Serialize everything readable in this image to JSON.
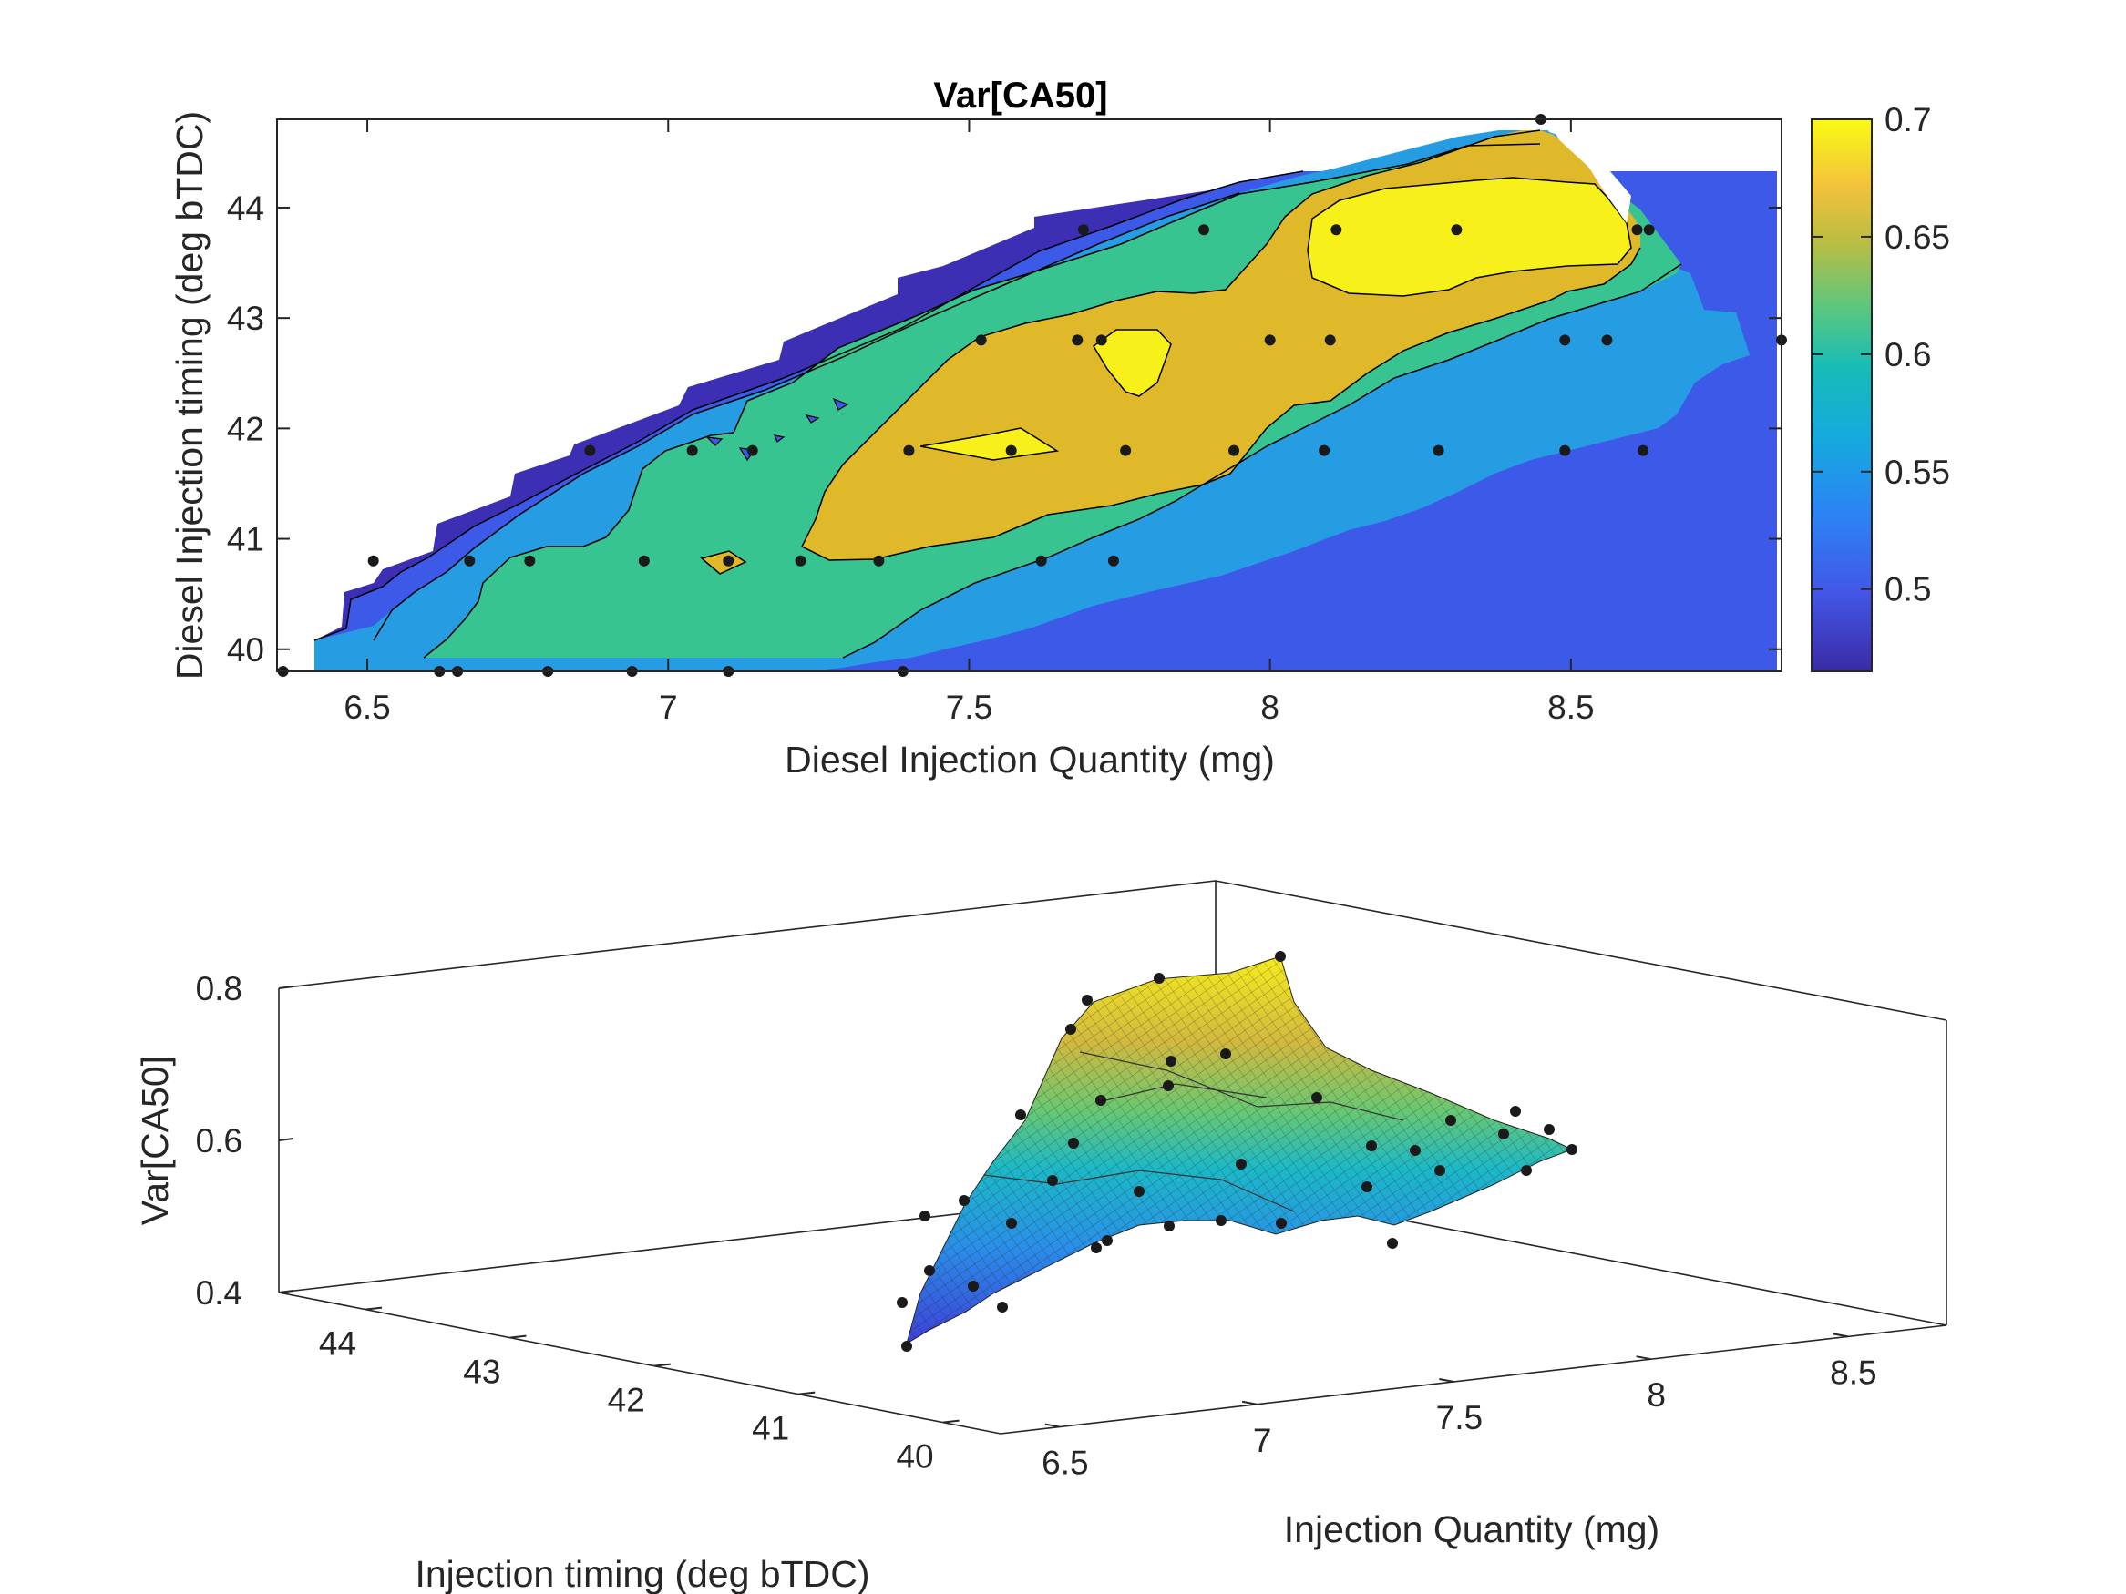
{
  "chart_data": [
    {
      "type": "contour",
      "title": "Var[CA50]",
      "xlabel": "Diesel Injection Quantity (mg)",
      "ylabel": "Diesel Injection timing (deg bTDC)",
      "xlim": [
        6.35,
        8.85
      ],
      "ylim": [
        39.8,
        44.8
      ],
      "xticks": [
        6.5,
        7,
        7.5,
        8,
        8.5
      ],
      "xtick_labels": [
        "6.5",
        "7",
        "7.5",
        "8",
        "8.5"
      ],
      "yticks": [
        40,
        41,
        42,
        43,
        44
      ],
      "ytick_labels": [
        "40",
        "41",
        "42",
        "43",
        "44"
      ],
      "colorbar": {
        "range": [
          0.465,
          0.7
        ],
        "ticks": [
          0.5,
          0.55,
          0.6,
          0.65,
          0.7
        ],
        "tick_labels": [
          "0.5",
          "0.55",
          "0.6",
          "0.65",
          "0.7"
        ],
        "colormap": "parula"
      },
      "contour_levels": [
        0.5,
        0.55,
        0.6,
        0.65,
        0.7
      ],
      "level_colors": [
        "#3c2fb3",
        "#3d59e8",
        "#269de3",
        "#37c491",
        "#e0b92b",
        "#f7f01a"
      ],
      "grid": false,
      "sample_points": [
        [
          6.36,
          39.8
        ],
        [
          6.51,
          40.8
        ],
        [
          6.62,
          39.8
        ],
        [
          6.65,
          39.8
        ],
        [
          6.67,
          40.8
        ],
        [
          6.77,
          40.8
        ],
        [
          6.8,
          39.8
        ],
        [
          6.87,
          41.8
        ],
        [
          6.94,
          39.8
        ],
        [
          6.96,
          40.8
        ],
        [
          7.04,
          41.8
        ],
        [
          7.1,
          40.8
        ],
        [
          7.1,
          39.8
        ],
        [
          7.14,
          41.8
        ],
        [
          7.22,
          40.8
        ],
        [
          7.35,
          40.8
        ],
        [
          7.39,
          39.8
        ],
        [
          7.4,
          41.8
        ],
        [
          7.52,
          42.8
        ],
        [
          7.57,
          41.8
        ],
        [
          7.62,
          40.8
        ],
        [
          7.68,
          42.8
        ],
        [
          7.69,
          43.8
        ],
        [
          7.72,
          42.8
        ],
        [
          7.74,
          40.8
        ],
        [
          7.76,
          41.8
        ],
        [
          7.89,
          43.8
        ],
        [
          7.94,
          41.8
        ],
        [
          8.0,
          42.8
        ],
        [
          8.09,
          41.8
        ],
        [
          8.1,
          42.8
        ],
        [
          8.11,
          43.8
        ],
        [
          8.28,
          41.8
        ],
        [
          8.31,
          43.8
        ],
        [
          8.45,
          44.8
        ],
        [
          8.49,
          41.8
        ],
        [
          8.49,
          42.8
        ],
        [
          8.56,
          42.8
        ],
        [
          8.61,
          43.8
        ],
        [
          8.62,
          41.8
        ],
        [
          8.63,
          43.8
        ],
        [
          8.85,
          42.8
        ]
      ]
    },
    {
      "type": "surface3d",
      "xlabel": "Injection Quantity (mg)",
      "ylabel": "Injection timing (deg bTDC)",
      "zlabel": "Var[CA50]",
      "xticks": [
        6.5,
        7,
        7.5,
        8,
        8.5
      ],
      "xtick_labels": [
        "6.5",
        "7",
        "7.5",
        "8",
        "8.5"
      ],
      "yticks": [
        40,
        41,
        42,
        43,
        44
      ],
      "ytick_labels": [
        "40",
        "41",
        "42",
        "43",
        "44"
      ],
      "zticks": [
        0.4,
        0.6,
        0.8
      ],
      "ztick_labels": [
        "0.4",
        "0.6",
        "0.8"
      ],
      "zlim": [
        0.4,
        0.8
      ],
      "colormap": "parula"
    }
  ]
}
